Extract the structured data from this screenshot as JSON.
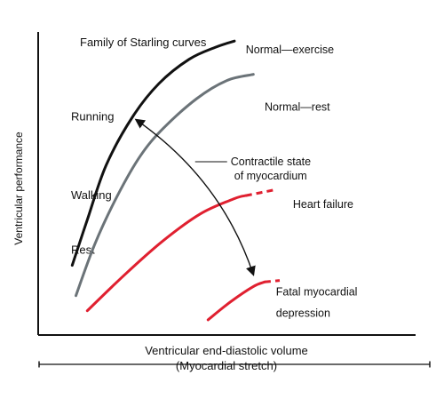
{
  "chart_data": {
    "type": "line",
    "title": "Family of Starling curves",
    "xlabel": "Ventricular end-diastolic volume",
    "xlabel2": "(Myocardial stretch)",
    "ylabel": "Ventricular performance",
    "ylim": [
      0,
      10
    ],
    "xlim": [
      0,
      10
    ],
    "grid": false,
    "y_levels": [
      {
        "label": "Running",
        "y": 7.2
      },
      {
        "label": "Walking",
        "y": 4.6
      },
      {
        "label": "Rest",
        "y": 2.8
      }
    ],
    "series": [
      {
        "name": "Normal—exercise",
        "color": "#111111",
        "points": [
          [
            0.9,
            2.3
          ],
          [
            1.3,
            3.8
          ],
          [
            1.8,
            5.6
          ],
          [
            2.5,
            7.2
          ],
          [
            3.2,
            8.3
          ],
          [
            4.0,
            9.1
          ],
          [
            4.7,
            9.5
          ],
          [
            5.2,
            9.7
          ]
        ],
        "dashed_points": []
      },
      {
        "name": "Normal—rest",
        "color": "#6b7378",
        "points": [
          [
            1.0,
            1.3
          ],
          [
            1.5,
            3.0
          ],
          [
            2.1,
            4.6
          ],
          [
            2.7,
            5.9
          ],
          [
            3.3,
            6.8
          ],
          [
            4.2,
            7.8
          ],
          [
            5.0,
            8.4
          ],
          [
            5.7,
            8.6
          ]
        ],
        "dashed_points": []
      },
      {
        "name": "Heart failure",
        "color": "#e02030",
        "points": [
          [
            1.3,
            0.8
          ],
          [
            2.3,
            2.0
          ],
          [
            3.3,
            3.1
          ],
          [
            4.3,
            4.0
          ],
          [
            5.2,
            4.5
          ],
          [
            5.5,
            4.6
          ]
        ],
        "dashed_points": [
          [
            5.5,
            4.6
          ],
          [
            6.3,
            4.8
          ]
        ]
      },
      {
        "name": "Fatal myocardial depression",
        "color": "#e02030",
        "points": [
          [
            4.5,
            0.5
          ],
          [
            5.1,
            1.1
          ],
          [
            5.7,
            1.6
          ],
          [
            6.0,
            1.75
          ]
        ],
        "dashed_points": [
          [
            6.0,
            1.75
          ],
          [
            6.4,
            1.8
          ]
        ]
      }
    ],
    "series_labels": [
      {
        "text": "Normal—exercise",
        "x": 5.5,
        "y": 9.3
      },
      {
        "text": "Normal—rest",
        "x": 6.0,
        "y": 7.4
      },
      {
        "text": "Heart failure",
        "x": 6.75,
        "y": 4.2
      },
      {
        "text": "Fatal myocardial",
        "x": 6.3,
        "y": 1.3
      },
      {
        "text": "depression",
        "x": 6.3,
        "y": 0.6
      }
    ],
    "annotation": {
      "lines": [
        "Contractile state",
        "of myocardium"
      ],
      "x": 5.1,
      "y": 5.6,
      "arrow_from": [
        2.6,
        7.1
      ],
      "arrow_to": [
        5.7,
        2.0
      ]
    },
    "colors": {
      "axis": "#111111",
      "exercise": "#111111",
      "rest": "#6b7378",
      "failure": "#e02030"
    }
  }
}
